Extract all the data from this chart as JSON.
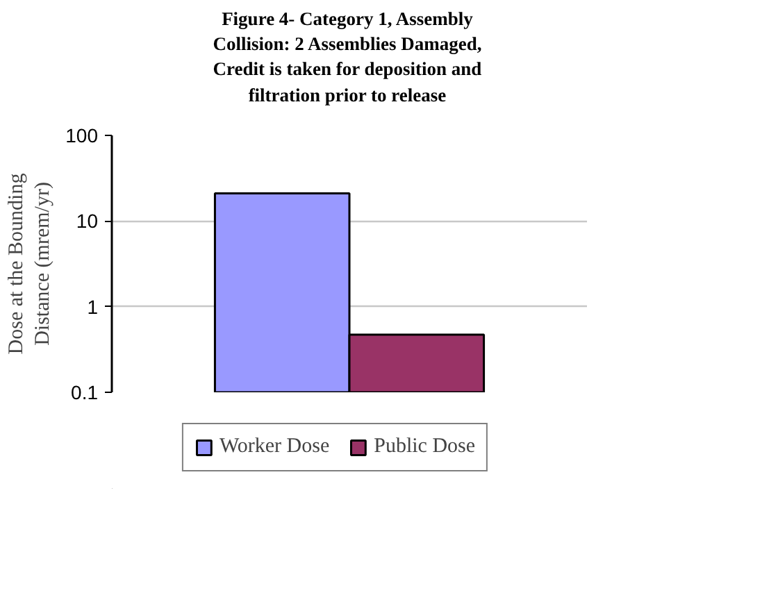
{
  "chart_data": {
    "type": "bar",
    "title": "Figure 4- Category 1, Assembly Collision: 2 Assemblies Damaged, Credit is taken for deposition and filtration prior to release",
    "ylabel": "Dose at the Bounding Distance (mrem/yr)",
    "categories": [
      null
    ],
    "series": [
      {
        "name": "Worker Dose",
        "color": "#9999ff",
        "values": [
          21
        ]
      },
      {
        "name": "Public Dose",
        "color": "#993366",
        "values": [
          0.47
        ]
      }
    ],
    "log": true,
    "ylim": [
      0.1,
      100
    ],
    "yticks": [
      0.1,
      1,
      10,
      100
    ],
    "grid": "y",
    "legend": "bottom"
  }
}
